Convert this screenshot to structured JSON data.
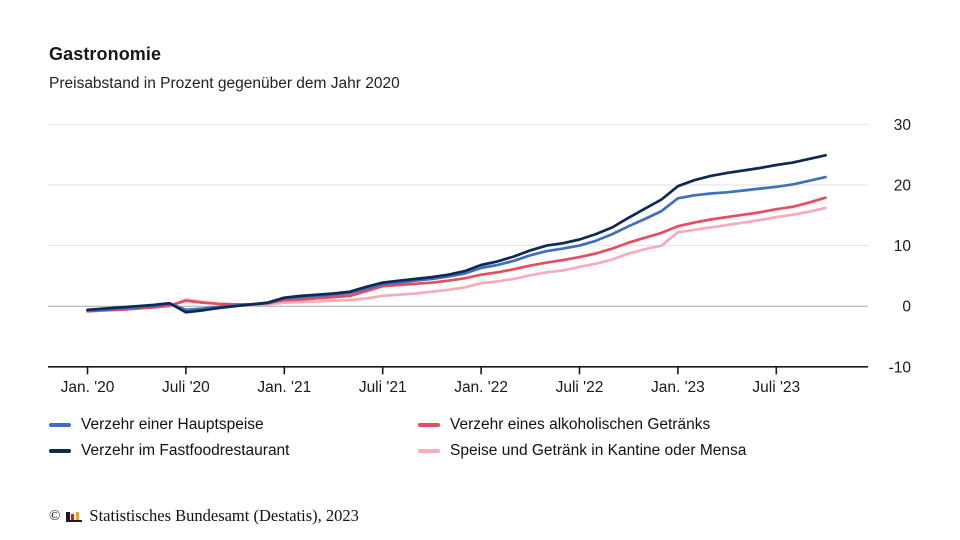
{
  "header": {
    "title": "Gastronomie",
    "subtitle": "Preisabstand in Prozent gegenüber dem Jahr 2020"
  },
  "chart_data": {
    "type": "line",
    "title": "Gastronomie",
    "subtitle": "Preisabstand in Prozent gegenüber dem Jahr 2020",
    "unit": "percent vs. 2020",
    "x_range": "Jan 2020 – Okt 2023, monatlich",
    "x_tick_labels": [
      "Jan. '20",
      "Juli '20",
      "Jan. '21",
      "Juli '21",
      "Jan. '22",
      "Juli '22",
      "Jan. '23",
      "Juli '23"
    ],
    "x_tick_month_indices": [
      0,
      6,
      12,
      18,
      24,
      30,
      36,
      42
    ],
    "y_tick_labels": [
      "30",
      "20",
      "10",
      "0",
      "-10"
    ],
    "y_ticks": [
      30,
      20,
      10,
      0,
      -10
    ],
    "ylim": [
      -10,
      30
    ],
    "grid": "horizontal",
    "legend_position": "bottom",
    "colors": {
      "gridline": "#e2e2e2",
      "zero_line": "#a8a8a8",
      "axis": "#1a1a1a"
    },
    "series": [
      {
        "name": "Verzehr einer Hauptspeise",
        "color": "#3f6fbf",
        "values": [
          -0.7,
          -0.6,
          -0.4,
          -0.2,
          0.0,
          0.4,
          -0.6,
          -0.4,
          -0.1,
          0.1,
          0.3,
          0.5,
          1.3,
          1.5,
          1.7,
          1.9,
          2.2,
          2.9,
          3.6,
          3.9,
          4.2,
          4.5,
          4.9,
          5.4,
          6.3,
          6.8,
          7.5,
          8.4,
          9.1,
          9.5,
          10.0,
          10.8,
          11.9,
          13.2,
          14.4,
          15.7,
          17.8,
          18.3,
          18.6,
          18.8,
          19.1,
          19.4,
          19.7,
          20.1,
          20.7,
          21.3
        ]
      },
      {
        "name": "Verzehr im Fastfoodrestaurant",
        "color": "#0e2a52",
        "values": [
          -0.6,
          -0.4,
          -0.2,
          0.0,
          0.2,
          0.5,
          -1.0,
          -0.7,
          -0.3,
          0.0,
          0.3,
          0.6,
          1.4,
          1.7,
          1.9,
          2.1,
          2.4,
          3.2,
          3.9,
          4.2,
          4.5,
          4.8,
          5.2,
          5.8,
          6.8,
          7.4,
          8.2,
          9.2,
          10.0,
          10.4,
          11.0,
          11.9,
          13.0,
          14.6,
          16.1,
          17.6,
          19.8,
          20.8,
          21.5,
          22.0,
          22.4,
          22.8,
          23.3,
          23.7,
          24.3,
          24.9
        ]
      },
      {
        "name": "Verzehr eines alkoholischen Getränks",
        "color": "#e84c60",
        "values": [
          -0.8,
          -0.7,
          -0.6,
          -0.4,
          -0.2,
          0.1,
          0.9,
          0.6,
          0.4,
          0.3,
          0.3,
          0.5,
          1.0,
          1.1,
          1.3,
          1.5,
          1.7,
          2.5,
          3.3,
          3.5,
          3.7,
          3.9,
          4.2,
          4.6,
          5.2,
          5.6,
          6.1,
          6.7,
          7.2,
          7.6,
          8.1,
          8.7,
          9.5,
          10.5,
          11.3,
          12.1,
          13.2,
          13.8,
          14.3,
          14.7,
          15.1,
          15.5,
          16.0,
          16.4,
          17.1,
          17.9
        ]
      },
      {
        "name": "Speise und Getränk in Kantine oder Mensa",
        "color": "#f8abb8",
        "values": [
          -0.9,
          -0.7,
          -0.5,
          -0.3,
          -0.2,
          0.0,
          1.1,
          0.7,
          0.4,
          0.2,
          0.2,
          0.3,
          0.6,
          0.7,
          0.8,
          0.9,
          1.0,
          1.3,
          1.7,
          1.9,
          2.1,
          2.4,
          2.7,
          3.1,
          3.8,
          4.1,
          4.5,
          5.1,
          5.6,
          5.9,
          6.5,
          7.0,
          7.7,
          8.7,
          9.4,
          10.0,
          12.2,
          12.6,
          13.0,
          13.4,
          13.8,
          14.2,
          14.7,
          15.1,
          15.6,
          16.2
        ]
      }
    ]
  },
  "footer": {
    "copyright_symbol": "©",
    "source": "Statistisches Bundesamt (Destatis), 2023",
    "logo_bar_colors": [
      "#1a1a1a",
      "#d2192b",
      "#f2a900"
    ]
  }
}
